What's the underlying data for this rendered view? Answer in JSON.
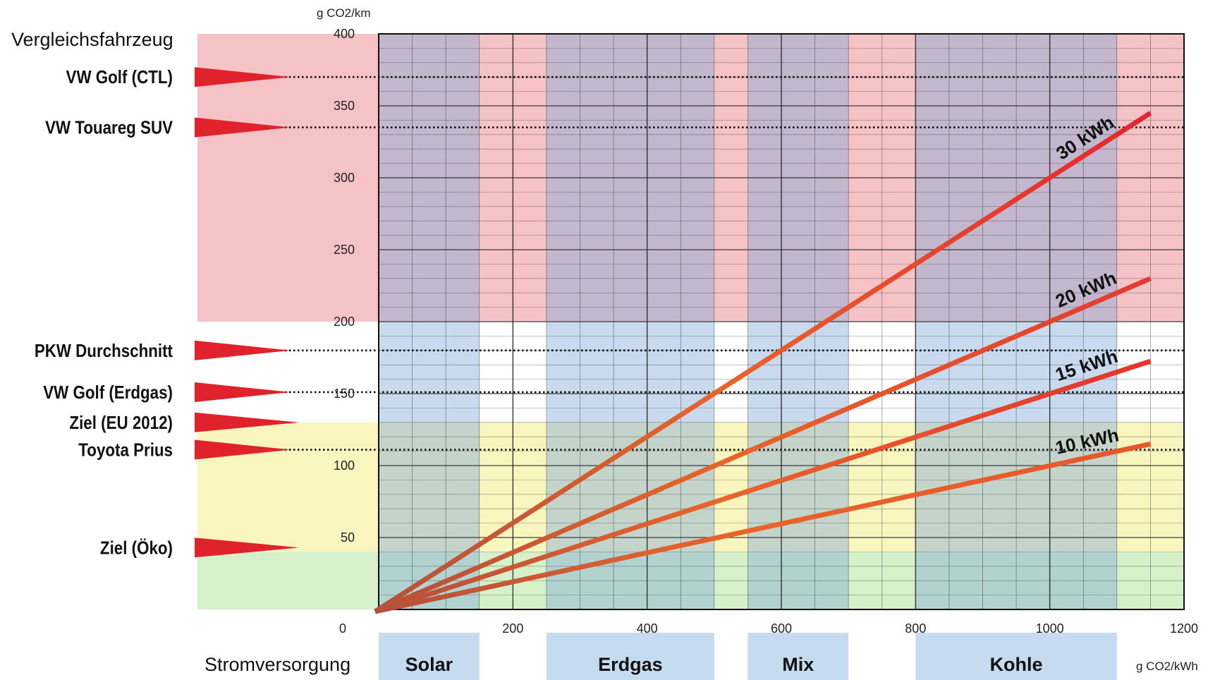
{
  "chart_data": {
    "type": "line",
    "y_unit": "g CO2/km",
    "x_unit": "g CO2/kWh",
    "left_heading": "Vergleichsfahrzeug",
    "bottom_heading": "Stromversorgung",
    "xlim": [
      0,
      1200
    ],
    "ylim": [
      0,
      400
    ],
    "x_ticks": [
      0,
      200,
      400,
      600,
      800,
      1000,
      1200
    ],
    "y_ticks": [
      50,
      100,
      150,
      200,
      250,
      300,
      350,
      400
    ],
    "grid": true,
    "series": [
      {
        "name": "30 kWh",
        "x": [
          0,
          1150
        ],
        "y": [
          0,
          345
        ],
        "color": "#e4252f"
      },
      {
        "name": "20 kWh",
        "x": [
          0,
          1150
        ],
        "y": [
          0,
          230
        ],
        "color": "#e23a2f"
      },
      {
        "name": "15 kWh",
        "x": [
          0,
          1150
        ],
        "y": [
          0,
          172.5
        ],
        "color": "#e4342e"
      },
      {
        "name": "10 kWh",
        "x": [
          0,
          1150
        ],
        "y": [
          0,
          115
        ],
        "color": "#e6572b"
      }
    ],
    "bands": [
      {
        "y0": 200,
        "y1": 400,
        "color": "#f5c3c6"
      },
      {
        "y0": 130,
        "y1": 200,
        "color": "#ffffff"
      },
      {
        "y0": 40,
        "y1": 130,
        "color": "#f8f5bf"
      },
      {
        "y0": 0,
        "y1": 40,
        "color": "#d6f1c9"
      }
    ],
    "sources": [
      {
        "label": "Solar",
        "x0": 0,
        "x1": 150
      },
      {
        "label": "Erdgas",
        "x0": 250,
        "x1": 500
      },
      {
        "label": "Mix",
        "x0": 550,
        "x1": 700
      },
      {
        "label": "Kohle",
        "x0": 800,
        "x1": 1100
      }
    ],
    "reference_vehicles": [
      {
        "label": "VW Golf (CTL)",
        "value": 370,
        "line": true
      },
      {
        "label": "VW Touareg SUV",
        "value": 335,
        "line": true
      },
      {
        "label": "PKW Durchschnitt",
        "value": 180,
        "line": true
      },
      {
        "label": "VW Golf (Erdgas)",
        "value": 151,
        "line": true
      },
      {
        "label": "Ziel (EU 2012)",
        "value": 130,
        "line": false
      },
      {
        "label": "Toyota Prius",
        "value": 111,
        "line": true
      },
      {
        "label": "Ziel (Öko)",
        "value": 43,
        "line": false
      }
    ]
  }
}
